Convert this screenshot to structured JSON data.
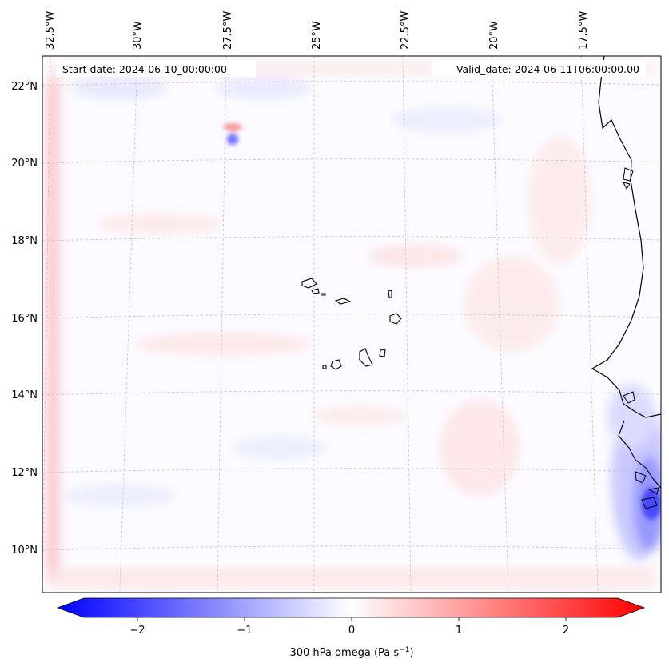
{
  "header": {
    "start_date": "Start date: 2024-06-10_00:00:00",
    "valid_date": "Valid_date: 2024-06-11T06:00:00.00"
  },
  "map": {
    "lon_labels": [
      "32.5°W",
      "30°W",
      "27.5°W",
      "25°W",
      "22.5°W",
      "20°W",
      "17.5°W"
    ],
    "lat_labels": [
      "22°N",
      "20°N",
      "18°N",
      "16°N",
      "14°N",
      "12°N",
      "10°N"
    ]
  },
  "colorbar": {
    "ticks": [
      "−2",
      "−1",
      "0",
      "1",
      "2"
    ],
    "label": "300 hPa omega (Pa s",
    "label_sup": "−1",
    "label_end": ")",
    "colors": {
      "negative": "#0000ff",
      "zero": "#ffffff",
      "positive": "#ff0000"
    }
  }
}
